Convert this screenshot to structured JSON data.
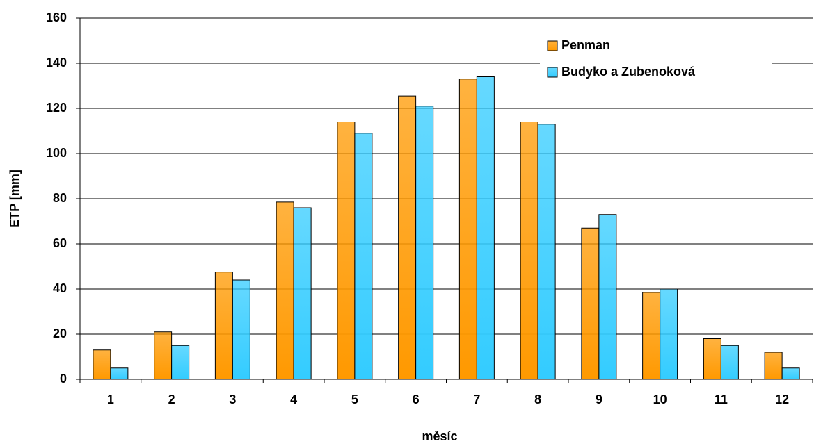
{
  "chart_data": {
    "type": "bar",
    "x_label": "měsíc",
    "y_label": "ETP [mm]",
    "categories": [
      "1",
      "2",
      "3",
      "4",
      "5",
      "6",
      "7",
      "8",
      "9",
      "10",
      "11",
      "12"
    ],
    "series": [
      {
        "name": "Penman",
        "color": "#ff9900",
        "values": [
          13,
          21,
          47.5,
          78.5,
          114,
          125.5,
          133,
          114,
          67,
          38.5,
          18,
          12
        ]
      },
      {
        "name": "Budyko a Zubenoková",
        "color": "#33ccff",
        "values": [
          5,
          15,
          44,
          76,
          109,
          121,
          134,
          113,
          73,
          40,
          15,
          5
        ]
      }
    ],
    "ylim": [
      0,
      160
    ],
    "yticks": [
      0,
      20,
      40,
      60,
      80,
      100,
      120,
      140,
      160
    ],
    "grid": true,
    "legend": "top-right"
  }
}
